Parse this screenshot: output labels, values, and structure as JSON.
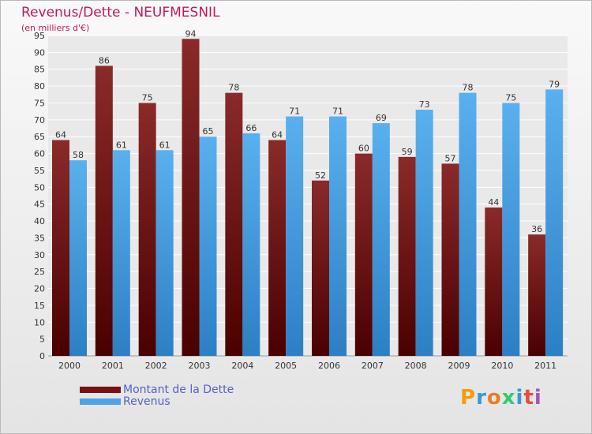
{
  "chart_data": {
    "type": "bar",
    "title": "Revenus/Dette - NEUFMESNIL",
    "subtitle": "(en milliers d'€)",
    "categories": [
      "2000",
      "2001",
      "2002",
      "2003",
      "2004",
      "2005",
      "2006",
      "2007",
      "2008",
      "2009",
      "2010",
      "2011"
    ],
    "series": [
      {
        "name": "Montant de la Dette",
        "color": "#7a1010",
        "values": [
          64,
          86,
          75,
          94,
          78,
          64,
          52,
          60,
          59,
          57,
          44,
          36
        ]
      },
      {
        "name": "Revenus",
        "color": "#4ca3e6",
        "values": [
          58,
          61,
          61,
          65,
          66,
          71,
          71,
          69,
          73,
          78,
          75,
          79
        ]
      }
    ],
    "ylim": [
      0,
      95
    ],
    "yticks": [
      0,
      5,
      10,
      15,
      20,
      25,
      30,
      35,
      40,
      45,
      50,
      55,
      60,
      65,
      70,
      75,
      80,
      85,
      90,
      95
    ],
    "grid": true,
    "legend_position": "bottom-left"
  },
  "brand": {
    "letters": [
      "P",
      "r",
      "o",
      "x",
      "i",
      "t",
      "i"
    ],
    "colors": [
      "#f39c12",
      "#3498db",
      "#e67e22",
      "#2ecc71",
      "#3498db",
      "#e74c3c",
      "#9b59b6"
    ]
  }
}
